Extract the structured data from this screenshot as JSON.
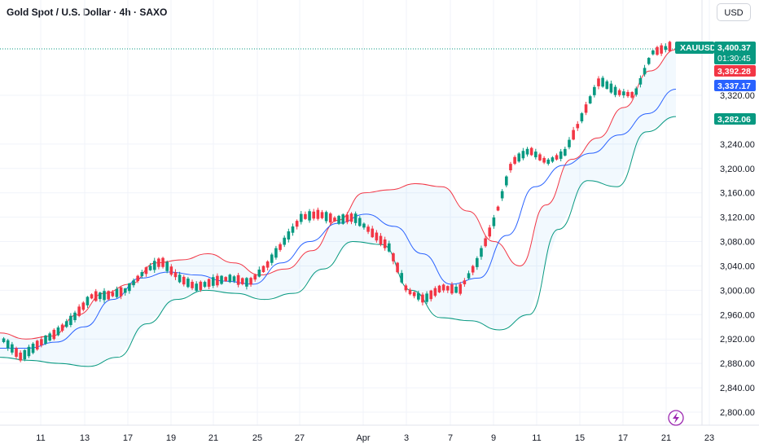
{
  "header": {
    "title": "Gold Spot / U.S. Dollar · 4h · SAXO",
    "currency": "USD"
  },
  "tags": {
    "symbol": "XAUUSD",
    "last_price": "3,400.37",
    "countdown": "01:30:45",
    "high_marker": "3,392.28",
    "middle_band": "3,337.17",
    "lower_band": "3,282.06"
  },
  "colors": {
    "up": "#089981",
    "down": "#f23645",
    "upper_band": "#f23645",
    "basis": "#2962ff",
    "lower_band": "#089981",
    "band_fill": "#2196f3",
    "grid": "#f0f3fa"
  },
  "icons": {
    "corner": "lightning-icon"
  },
  "chart_data": {
    "type": "candlestick",
    "title": "Gold Spot / U.S. Dollar · 4h · SAXO",
    "ylim": [
      2780,
      3440
    ],
    "y_ticks": [
      "2,800.00",
      "2,840.00",
      "2,880.00",
      "2,920.00",
      "2,960.00",
      "3,000.00",
      "3,040.00",
      "3,080.00",
      "3,120.00",
      "3,160.00",
      "3,200.00",
      "3,240.00",
      "3,320.00"
    ],
    "x_ticks": [
      "11",
      "13",
      "17",
      "19",
      "21",
      "25",
      "27",
      "Apr",
      "3",
      "7",
      "9",
      "11",
      "15",
      "17",
      "21",
      "23"
    ],
    "grid": true,
    "indicators": [
      "Bollinger Bands"
    ],
    "ohlc_anchors": [
      [
        2915,
        2930,
        2905,
        2918
      ],
      [
        2905,
        2915,
        2885,
        2890
      ],
      [
        2895,
        2920,
        2890,
        2912
      ],
      [
        2915,
        2935,
        2910,
        2930
      ],
      [
        2935,
        2960,
        2930,
        2955
      ],
      [
        2960,
        2995,
        2955,
        2990
      ],
      [
        2985,
        3000,
        2975,
        2992
      ],
      [
        2990,
        3010,
        2985,
        3000
      ],
      [
        3010,
        3035,
        3005,
        3030
      ],
      [
        3040,
        3055,
        3035,
        3048
      ],
      [
        3035,
        3045,
        3015,
        3020
      ],
      [
        3015,
        3025,
        3000,
        3005
      ],
      [
        3010,
        3025,
        3005,
        3015
      ],
      [
        3020,
        3030,
        3010,
        3020
      ],
      [
        3015,
        3025,
        3005,
        3012
      ],
      [
        3020,
        3045,
        3015,
        3040
      ],
      [
        3060,
        3085,
        3055,
        3080
      ],
      [
        3100,
        3125,
        3095,
        3120
      ],
      [
        3130,
        3140,
        3110,
        3125
      ],
      [
        3120,
        3135,
        3105,
        3115
      ],
      [
        3140,
        3165,
        3115,
        3120
      ],
      [
        3110,
        3130,
        3085,
        3095
      ],
      [
        3090,
        3115,
        3050,
        3070
      ],
      [
        3060,
        3075,
        2990,
        3000
      ],
      [
        3010,
        3025,
        2975,
        2985
      ],
      [
        2985,
        3010,
        2965,
        3005
      ],
      [
        2990,
        3010,
        2970,
        3000
      ],
      [
        3010,
        3050,
        3005,
        3045
      ],
      [
        3080,
        3125,
        3070,
        3115
      ],
      [
        3170,
        3220,
        3160,
        3210
      ],
      [
        3235,
        3250,
        3215,
        3230
      ],
      [
        3220,
        3240,
        3195,
        3210
      ],
      [
        3215,
        3230,
        3200,
        3225
      ],
      [
        3240,
        3290,
        3235,
        3285
      ],
      [
        3320,
        3360,
        3310,
        3345
      ],
      [
        3350,
        3360,
        3320,
        3325
      ],
      [
        3300,
        3330,
        3290,
        3320
      ],
      [
        3330,
        3395,
        3325,
        3390
      ],
      [
        3395,
        3410,
        3385,
        3400
      ]
    ],
    "upper_band_anchors": [
      2930,
      2920,
      2925,
      2960,
      2995,
      3010,
      3045,
      3050,
      3060,
      3045,
      3025,
      3035,
      3065,
      3115,
      3160,
      3165,
      3175,
      3170,
      3130,
      3080,
      3040,
      3140,
      3215,
      3250,
      3300,
      3360,
      3395
    ],
    "basis_anchors": [
      2905,
      2905,
      2915,
      2940,
      2985,
      3020,
      3030,
      3025,
      3015,
      3010,
      3045,
      3080,
      3110,
      3125,
      3105,
      3060,
      3010,
      3020,
      3090,
      3170,
      3205,
      3225,
      3255,
      3290,
      3330
    ],
    "lower_band_anchors": [
      2890,
      2885,
      2880,
      2875,
      2890,
      2945,
      2985,
      3000,
      2995,
      2985,
      2995,
      3035,
      3080,
      3075,
      3000,
      2955,
      2950,
      2935,
      2960,
      3100,
      3180,
      3170,
      3260,
      3285
    ]
  }
}
